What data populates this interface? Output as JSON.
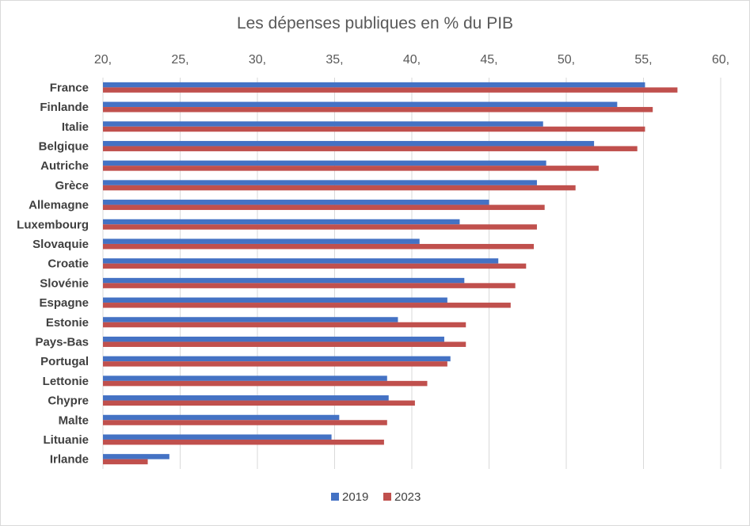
{
  "chart_data": {
    "type": "bar",
    "orientation": "horizontal",
    "title": "Les dépenses publiques en % du PIB",
    "xlabel": "",
    "ylabel": "",
    "xlim": [
      20,
      60
    ],
    "x_ticks": [
      20,
      25,
      30,
      35,
      40,
      45,
      50,
      55,
      60
    ],
    "x_tick_labels": [
      "20,",
      "25,",
      "30,",
      "35,",
      "40,",
      "45,",
      "50,",
      "55,",
      "60,"
    ],
    "x_axis_position": "top",
    "grid": true,
    "legend_position": "bottom",
    "categories": [
      "France",
      "Finlande",
      "Italie",
      "Belgique",
      "Autriche",
      "Grèce",
      "Allemagne",
      "Luxembourg",
      "Slovaquie",
      "Croatie",
      "Slovénie",
      "Espagne",
      "Estonie",
      "Pays-Bas",
      "Portugal",
      "Lettonie",
      "Chypre",
      "Malte",
      "Lituanie",
      "Irlande"
    ],
    "series": [
      {
        "name": "2019",
        "color": "#4472C4",
        "values": [
          55.1,
          53.3,
          48.5,
          51.8,
          48.7,
          48.1,
          45.0,
          43.1,
          40.5,
          45.6,
          43.4,
          42.3,
          39.1,
          42.1,
          42.5,
          38.4,
          38.5,
          35.3,
          34.8,
          24.3
        ]
      },
      {
        "name": "2023",
        "color": "#C0504D",
        "values": [
          57.2,
          55.6,
          55.1,
          54.6,
          52.1,
          50.6,
          48.6,
          48.1,
          47.9,
          47.4,
          46.7,
          46.4,
          43.5,
          43.5,
          42.3,
          41.0,
          40.2,
          38.4,
          38.2,
          22.9
        ]
      }
    ]
  }
}
